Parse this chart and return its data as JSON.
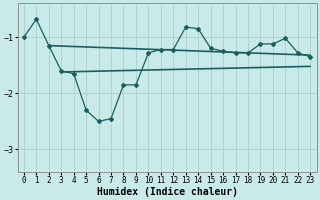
{
  "xlabel": "Humidex (Indice chaleur)",
  "background_color": "#c8eae8",
  "grid_color": "#a8d0cc",
  "line_color": "#1a6060",
  "xlim": [
    -0.5,
    23.5
  ],
  "ylim": [
    -3.4,
    -0.4
  ],
  "yticks": [
    -3,
    -2,
    -1
  ],
  "xticks": [
    0,
    1,
    2,
    3,
    4,
    5,
    6,
    7,
    8,
    9,
    10,
    11,
    12,
    13,
    14,
    15,
    16,
    17,
    18,
    19,
    20,
    21,
    22,
    23
  ],
  "curve1_x": [
    0,
    1,
    2,
    3,
    4,
    5,
    6,
    7,
    8,
    9,
    10,
    11,
    12,
    13,
    14,
    15,
    16,
    17,
    18,
    19,
    20,
    21,
    22,
    23
  ],
  "curve1_y": [
    -1.0,
    -0.68,
    -1.15,
    -1.6,
    -1.65,
    -2.3,
    -2.5,
    -2.45,
    -1.85,
    -1.85,
    -1.28,
    -1.22,
    -1.22,
    -0.82,
    -0.85,
    -1.2,
    -1.25,
    -1.28,
    -1.28,
    -1.12,
    -1.12,
    -1.02,
    -1.28,
    -1.35
  ],
  "line1_x": [
    2,
    23
  ],
  "line1_y": [
    -1.15,
    -1.32
  ],
  "line2_x": [
    3,
    23
  ],
  "line2_y": [
    -1.62,
    -1.52
  ],
  "tick_fontsize": 5.5,
  "xlabel_fontsize": 7
}
